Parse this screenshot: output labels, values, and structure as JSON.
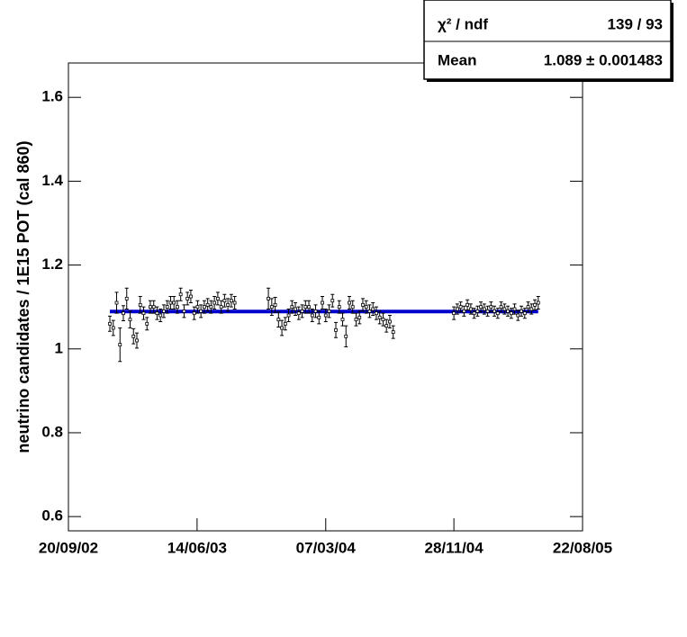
{
  "chart_data": {
    "type": "scatter",
    "y_label": "neutrino candidates / 1E15 POT (cal 860)",
    "xlim": [
      "2002-09-20",
      "2005-08-22"
    ],
    "xticks": [
      {
        "value": "2002-09-20",
        "label": "20/09/02"
      },
      {
        "value": "2003-06-14",
        "label": "14/06/03"
      },
      {
        "value": "2004-03-07",
        "label": "07/03/04"
      },
      {
        "value": "2004-11-28",
        "label": "28/11/04"
      },
      {
        "value": "2005-08-22",
        "label": "22/08/05"
      }
    ],
    "ylim": [
      0.566,
      1.682
    ],
    "yticks": [
      {
        "value": 0.6,
        "label": "0.6"
      },
      {
        "value": 0.8,
        "label": "0.8"
      },
      1,
      {
        "value": 1.2,
        "label": "1.2"
      },
      {
        "value": 1.4,
        "label": "1.4"
      },
      {
        "value": 1.6,
        "label": "1.6"
      }
    ],
    "color": "#000000",
    "fit": {
      "mean": 1.089,
      "color": "#0000cc"
    },
    "stats": [
      {
        "label": "χ² / ndf",
        "value": "139 / 93"
      },
      {
        "label": "Mean",
        "value": "1.089 ± 0.001483"
      }
    ],
    "x": [
      "2002-12-15",
      "2002-12-22",
      "2002-12-29",
      "2003-01-05",
      "2003-01-12",
      "2003-01-19",
      "2003-01-26",
      "2003-02-02",
      "2003-02-09",
      "2003-02-16",
      "2003-02-23",
      "2003-03-02",
      "2003-03-09",
      "2003-03-16",
      "2003-03-23",
      "2003-03-30",
      "2003-04-06",
      "2003-04-13",
      "2003-04-20",
      "2003-04-27",
      "2003-05-04",
      "2003-05-11",
      "2003-05-18",
      "2003-05-25",
      "2003-06-01",
      "2003-06-08",
      "2003-06-15",
      "2003-06-22",
      "2003-06-29",
      "2003-07-06",
      "2003-07-13",
      "2003-07-20",
      "2003-07-27",
      "2003-08-03",
      "2003-08-10",
      "2003-08-17",
      "2003-08-24",
      "2003-08-31",
      "2003-11-09",
      "2003-11-16",
      "2003-11-23",
      "2003-11-30",
      "2003-12-07",
      "2003-12-14",
      "2003-12-21",
      "2003-12-28",
      "2004-01-04",
      "2004-01-11",
      "2004-01-18",
      "2004-01-25",
      "2004-02-01",
      "2004-02-08",
      "2004-02-15",
      "2004-02-22",
      "2004-02-29",
      "2004-03-07",
      "2004-03-14",
      "2004-03-21",
      "2004-03-28",
      "2004-04-04",
      "2004-04-11",
      "2004-04-18",
      "2004-04-25",
      "2004-05-02",
      "2004-05-09",
      "2004-05-16",
      "2004-05-23",
      "2004-05-30",
      "2004-06-06",
      "2004-06-13",
      "2004-06-20",
      "2004-06-27",
      "2004-07-04",
      "2004-07-11",
      "2004-07-18",
      "2004-07-25",
      "2004-11-28",
      "2004-12-05",
      "2004-12-12",
      "2004-12-19",
      "2004-12-26",
      "2005-01-02",
      "2005-01-09",
      "2005-01-16",
      "2005-01-23",
      "2005-01-30",
      "2005-02-06",
      "2005-02-13",
      "2005-02-20",
      "2005-02-27",
      "2005-03-06",
      "2005-03-13",
      "2005-03-20",
      "2005-03-27",
      "2005-04-03",
      "2005-04-10",
      "2005-04-17",
      "2005-04-24",
      "2005-05-01",
      "2005-05-08",
      "2005-05-15",
      "2005-05-22"
    ],
    "values": [
      1.06,
      1.05,
      1.11,
      1.01,
      1.085,
      1.12,
      1.07,
      1.03,
      1.02,
      1.105,
      1.085,
      1.06,
      1.1,
      1.1,
      1.085,
      1.08,
      1.09,
      1.1,
      1.11,
      1.11,
      1.1,
      1.13,
      1.09,
      1.12,
      1.125,
      1.085,
      1.1,
      1.09,
      1.1,
      1.105,
      1.1,
      1.11,
      1.12,
      1.1,
      1.115,
      1.105,
      1.115,
      1.11,
      1.12,
      1.1,
      1.105,
      1.07,
      1.05,
      1.06,
      1.08,
      1.1,
      1.095,
      1.085,
      1.09,
      1.1,
      1.1,
      1.08,
      1.09,
      1.075,
      1.11,
      1.08,
      1.09,
      1.115,
      1.045,
      1.1,
      1.07,
      1.03,
      1.11,
      1.1,
      1.07,
      1.075,
      1.105,
      1.1,
      1.09,
      1.095,
      1.085,
      1.075,
      1.07,
      1.055,
      1.065,
      1.04,
      1.085,
      1.095,
      1.1,
      1.09,
      1.105,
      1.095,
      1.085,
      1.09,
      1.1,
      1.095,
      1.09,
      1.1,
      1.09,
      1.085,
      1.1,
      1.095,
      1.09,
      1.085,
      1.095,
      1.08,
      1.09,
      1.085,
      1.1,
      1.095,
      1.105,
      1.11
    ],
    "errors": [
      0.018,
      0.018,
      0.025,
      0.04,
      0.018,
      0.025,
      0.02,
      0.018,
      0.018,
      0.02,
      0.015,
      0.015,
      0.015,
      0.015,
      0.015,
      0.015,
      0.015,
      0.015,
      0.015,
      0.015,
      0.015,
      0.015,
      0.015,
      0.015,
      0.015,
      0.015,
      0.015,
      0.015,
      0.015,
      0.015,
      0.015,
      0.015,
      0.015,
      0.015,
      0.015,
      0.015,
      0.015,
      0.015,
      0.025,
      0.02,
      0.018,
      0.018,
      0.018,
      0.015,
      0.015,
      0.015,
      0.015,
      0.015,
      0.015,
      0.015,
      0.015,
      0.015,
      0.015,
      0.015,
      0.015,
      0.015,
      0.015,
      0.015,
      0.018,
      0.015,
      0.015,
      0.025,
      0.015,
      0.015,
      0.015,
      0.015,
      0.015,
      0.015,
      0.015,
      0.015,
      0.015,
      0.015,
      0.015,
      0.015,
      0.015,
      0.015,
      0.015,
      0.012,
      0.012,
      0.012,
      0.012,
      0.012,
      0.012,
      0.012,
      0.012,
      0.012,
      0.012,
      0.012,
      0.012,
      0.012,
      0.012,
      0.012,
      0.012,
      0.012,
      0.012,
      0.012,
      0.012,
      0.012,
      0.012,
      0.012,
      0.012,
      0.015
    ]
  }
}
